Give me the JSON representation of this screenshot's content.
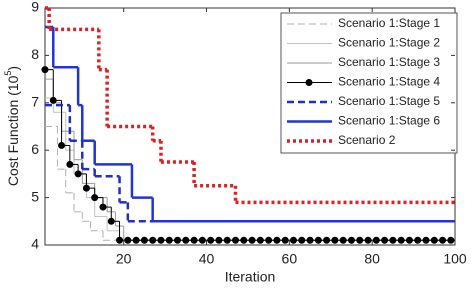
{
  "chart_data": {
    "type": "step-line",
    "xlabel": "Iteration",
    "ylabel": [
      "Cost Function (10",
      "5",
      ")"
    ],
    "xlim": [
      1,
      100
    ],
    "xticks": [
      20,
      40,
      60,
      80,
      100
    ],
    "ylim": [
      4,
      9
    ],
    "yticks": [
      4,
      5,
      6,
      7,
      8,
      9
    ],
    "grid": false,
    "legend": "upper right",
    "series": [
      {
        "name": "Scenario 1:Stage 1",
        "color": "#b0b0b0",
        "style": "dashed",
        "x": [
          1,
          4,
          6,
          8,
          10,
          12,
          15
        ],
        "values": [
          6.5,
          5.6,
          5.1,
          4.7,
          4.5,
          4.3,
          4.1
        ]
      },
      {
        "name": "Scenario 1:Stage 2",
        "color": "#c0c0c0",
        "style": "solid",
        "x": [
          1,
          3,
          6,
          8,
          11,
          13,
          16,
          19
        ],
        "values": [
          7.1,
          6.8,
          6.0,
          5.5,
          5.0,
          4.6,
          4.3,
          4.1
        ]
      },
      {
        "name": "Scenario 1:Stage 3",
        "color": "#999999",
        "style": "solid",
        "x": [
          1,
          3,
          5,
          8,
          10,
          13,
          16,
          18,
          20
        ],
        "values": [
          7.5,
          7.0,
          6.4,
          5.8,
          5.3,
          5.0,
          4.7,
          4.4,
          4.1
        ]
      },
      {
        "name": "Scenario 1:Stage 4",
        "color": "#000000",
        "style": "solid",
        "marker": "dot",
        "x": [
          1,
          3,
          5,
          7,
          9,
          11,
          13,
          15,
          17,
          19,
          21,
          23,
          25,
          27,
          29,
          31,
          33,
          35,
          37,
          39,
          41,
          43,
          45,
          47,
          49,
          51,
          53,
          55,
          57,
          59,
          61,
          63,
          65,
          67,
          69,
          71,
          73,
          75,
          77,
          79,
          81,
          83,
          85,
          87,
          89,
          91,
          93,
          95,
          97,
          99
        ],
        "values": [
          7.7,
          7.05,
          6.1,
          5.7,
          5.5,
          5.2,
          5.0,
          4.8,
          4.5,
          4.1,
          4.1,
          4.1,
          4.1,
          4.1,
          4.1,
          4.1,
          4.1,
          4.1,
          4.1,
          4.1,
          4.1,
          4.1,
          4.1,
          4.1,
          4.1,
          4.1,
          4.1,
          4.1,
          4.1,
          4.1,
          4.1,
          4.1,
          4.1,
          4.1,
          4.1,
          4.1,
          4.1,
          4.1,
          4.1,
          4.1,
          4.1,
          4.1,
          4.1,
          4.1,
          4.1,
          4.1,
          4.1,
          4.1,
          4.1,
          4.1
        ]
      },
      {
        "name": "Scenario 1:Stage 5",
        "color": "#1f2fc8",
        "style": "dashed",
        "x": [
          1,
          7,
          10,
          13,
          19,
          21
        ],
        "values": [
          6.95,
          6.2,
          5.6,
          5.45,
          4.9,
          4.5
        ]
      },
      {
        "name": "Scenario 1:Stage 6",
        "color": "#1f35d8",
        "style": "solid",
        "x": [
          1,
          3,
          9,
          10,
          13,
          22,
          27
        ],
        "values": [
          8.6,
          7.75,
          6.95,
          6.2,
          5.7,
          5.0,
          4.5
        ]
      },
      {
        "name": "Scenario 2",
        "color": "#e02020",
        "style": "dotted",
        "x": [
          1,
          2,
          14,
          16,
          27,
          29,
          37,
          47
        ],
        "values": [
          9,
          8.55,
          7.7,
          6.5,
          6.2,
          5.75,
          5.25,
          4.9
        ]
      }
    ]
  }
}
